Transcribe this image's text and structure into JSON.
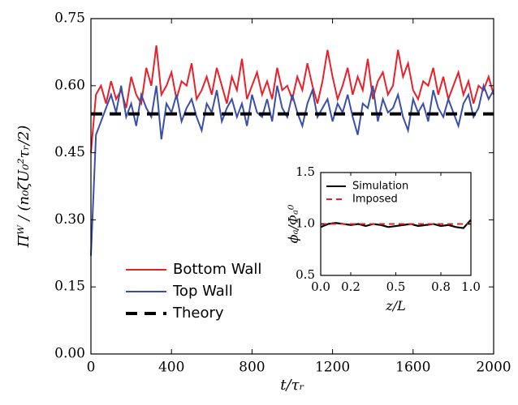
{
  "chart_data": [
    {
      "type": "line",
      "xlabel": "t/τᵣ",
      "ylabel": "Πᵂ / (n₀ζU₀²τᵣ/2)",
      "xlim": [
        0,
        2000
      ],
      "xticks": [
        0,
        400,
        800,
        1200,
        1600,
        2000
      ],
      "ylim": [
        0,
        0.75
      ],
      "yticks": [
        {
          "value": 0,
          "label": "0.00"
        },
        0.15,
        {
          "value": 0.3,
          "label": "0.30"
        },
        0.45,
        {
          "value": 0.6,
          "label": "0.60"
        },
        0.75
      ],
      "legend": "lower left",
      "x": [
        0,
        25,
        50,
        75,
        100,
        125,
        150,
        175,
        200,
        225,
        250,
        275,
        300,
        325,
        350,
        375,
        400,
        425,
        450,
        475,
        500,
        525,
        550,
        575,
        600,
        625,
        650,
        675,
        700,
        725,
        750,
        775,
        800,
        825,
        850,
        875,
        900,
        925,
        950,
        975,
        1000,
        1025,
        1050,
        1075,
        1100,
        1125,
        1150,
        1175,
        1200,
        1225,
        1250,
        1275,
        1300,
        1325,
        1350,
        1375,
        1400,
        1425,
        1450,
        1475,
        1500,
        1525,
        1550,
        1575,
        1600,
        1625,
        1650,
        1675,
        1700,
        1725,
        1750,
        1775,
        1800,
        1825,
        1850,
        1875,
        1900,
        1925,
        1950,
        1975,
        2000
      ],
      "series": [
        {
          "name": "Bottom Wall",
          "color": "#e8202a",
          "values": [
            0.45,
            0.58,
            0.6,
            0.56,
            0.61,
            0.57,
            0.59,
            0.55,
            0.62,
            0.58,
            0.56,
            0.64,
            0.6,
            0.69,
            0.58,
            0.6,
            0.63,
            0.57,
            0.61,
            0.6,
            0.65,
            0.57,
            0.59,
            0.62,
            0.58,
            0.64,
            0.6,
            0.56,
            0.62,
            0.59,
            0.66,
            0.57,
            0.6,
            0.63,
            0.58,
            0.61,
            0.57,
            0.64,
            0.59,
            0.6,
            0.57,
            0.62,
            0.59,
            0.65,
            0.6,
            0.56,
            0.61,
            0.68,
            0.62,
            0.57,
            0.6,
            0.64,
            0.58,
            0.62,
            0.59,
            0.66,
            0.57,
            0.61,
            0.63,
            0.58,
            0.6,
            0.68,
            0.62,
            0.65,
            0.59,
            0.57,
            0.61,
            0.6,
            0.64,
            0.58,
            0.62,
            0.57,
            0.6,
            0.63,
            0.58,
            0.61,
            0.56,
            0.6,
            0.59,
            0.62,
            0.58
          ]
        },
        {
          "name": "Top Wall",
          "color": "#3a4fa8",
          "values": [
            0.22,
            0.49,
            0.52,
            0.55,
            0.58,
            0.54,
            0.6,
            0.53,
            0.56,
            0.51,
            0.58,
            0.55,
            0.53,
            0.6,
            0.48,
            0.56,
            0.54,
            0.58,
            0.52,
            0.55,
            0.57,
            0.53,
            0.5,
            0.56,
            0.54,
            0.59,
            0.52,
            0.55,
            0.57,
            0.53,
            0.56,
            0.51,
            0.58,
            0.54,
            0.53,
            0.57,
            0.52,
            0.6,
            0.55,
            0.53,
            0.58,
            0.54,
            0.51,
            0.56,
            0.59,
            0.53,
            0.55,
            0.57,
            0.52,
            0.56,
            0.54,
            0.58,
            0.53,
            0.49,
            0.56,
            0.55,
            0.6,
            0.52,
            0.57,
            0.54,
            0.55,
            0.58,
            0.53,
            0.5,
            0.57,
            0.54,
            0.56,
            0.52,
            0.59,
            0.55,
            0.53,
            0.57,
            0.54,
            0.51,
            0.56,
            0.58,
            0.53,
            0.55,
            0.6,
            0.57,
            0.59
          ]
        },
        {
          "name": "Theory",
          "color": "#000000",
          "dashed": true,
          "x": [
            0,
            2000
          ],
          "values": [
            0.537,
            0.537
          ]
        }
      ]
    },
    {
      "type": "line",
      "xlabel": "z/L",
      "ylabel": "ϕₐ/Φₐ⁰",
      "xlim": [
        0,
        1
      ],
      "xticks": [
        {
          "value": 0,
          "label": "0.0"
        },
        0.2,
        0.5,
        0.8,
        {
          "value": 1,
          "label": "1.0"
        }
      ],
      "ylim": [
        0.5,
        1.5
      ],
      "yticks": [
        0.5,
        {
          "value": 1,
          "label": "1.0"
        },
        1.5
      ],
      "legend": "upper left",
      "x": [
        0,
        0.05,
        0.1,
        0.15,
        0.2,
        0.25,
        0.3,
        0.35,
        0.4,
        0.45,
        0.5,
        0.55,
        0.6,
        0.65,
        0.7,
        0.75,
        0.8,
        0.85,
        0.9,
        0.95,
        1.0
      ],
      "series": [
        {
          "name": "Simulation",
          "color": "#000000",
          "values": [
            0.97,
            1.0,
            1.01,
            1.0,
            0.99,
            1.0,
            0.98,
            1.0,
            0.99,
            0.97,
            0.98,
            0.99,
            1.0,
            0.98,
            0.99,
            1.0,
            0.98,
            0.99,
            0.97,
            0.96,
            1.04
          ]
        },
        {
          "name": "Imposed",
          "color": "#e8202a",
          "dashed": true,
          "x": [
            0,
            1
          ],
          "values": [
            1,
            1
          ]
        }
      ]
    }
  ]
}
